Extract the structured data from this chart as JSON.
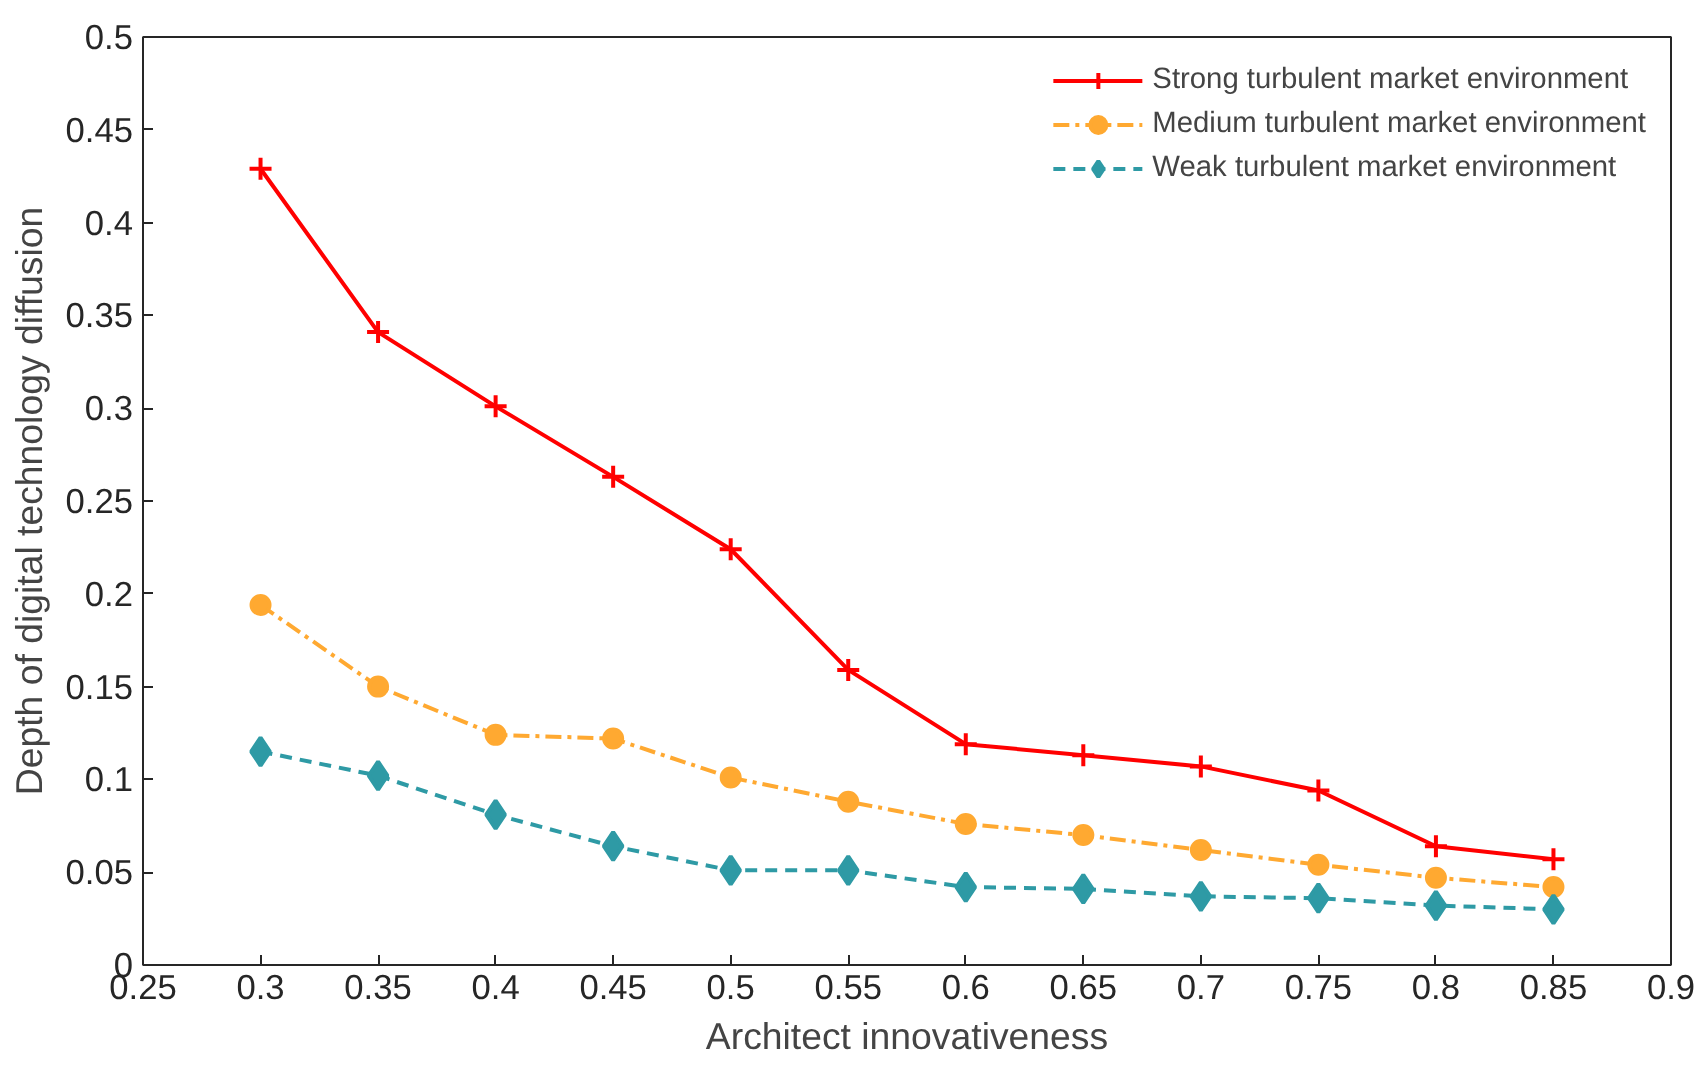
{
  "chart_data": {
    "type": "line",
    "xlabel": "Architect innovativeness",
    "ylabel": "Depth of digital technology diffusion",
    "x": [
      0.3,
      0.35,
      0.4,
      0.45,
      0.5,
      0.55,
      0.6,
      0.65,
      0.7,
      0.75,
      0.8,
      0.85
    ],
    "series": [
      {
        "name": "Strong turbulent market environment",
        "color": "#ff0000",
        "marker": "cross",
        "line_style": "solid",
        "values": [
          0.429,
          0.341,
          0.301,
          0.263,
          0.224,
          0.159,
          0.119,
          0.113,
          0.107,
          0.094,
          0.064,
          0.057
        ]
      },
      {
        "name": "Medium turbulent market environment",
        "color": "#ffa931",
        "marker": "circle",
        "line_style": "dashdot",
        "values": [
          0.194,
          0.15,
          0.124,
          0.122,
          0.101,
          0.088,
          0.076,
          0.07,
          0.062,
          0.054,
          0.047,
          0.042
        ]
      },
      {
        "name": "Weak turbulent market environment",
        "color": "#2e9aa5",
        "marker": "diamond",
        "line_style": "dashed",
        "values": [
          0.115,
          0.102,
          0.081,
          0.064,
          0.051,
          0.051,
          0.042,
          0.041,
          0.037,
          0.036,
          0.032,
          0.03
        ]
      }
    ],
    "xlim": [
      0.25,
      0.9
    ],
    "xticks": [
      0.25,
      0.3,
      0.35,
      0.4,
      0.45,
      0.5,
      0.55,
      0.6,
      0.65,
      0.7,
      0.75,
      0.8,
      0.85,
      0.9
    ],
    "ylim": [
      0,
      0.5
    ],
    "yticks": [
      0,
      0.05,
      0.1,
      0.15,
      0.2,
      0.25,
      0.3,
      0.35,
      0.4,
      0.45,
      0.5
    ],
    "grid": false,
    "legend": "top right"
  }
}
